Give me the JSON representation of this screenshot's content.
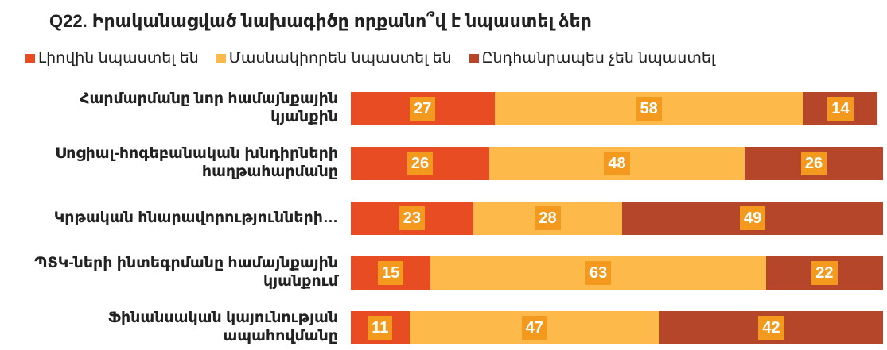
{
  "chart_data": {
    "type": "bar",
    "orientation": "horizontal",
    "stacked": true,
    "title": "Q22. Իրականացված նախագիծը որքանո՞վ է նպաստել ձեր",
    "categories": [
      "Հարմարմանը նոր համայնքային կյանքին",
      "Սոցիալ-հոգեբանական խնդիրների հաղթահարմանը",
      "Կրթական հնարավորությունների…",
      "ՊՏԿ-ների ինտեգրմանը համայնքային կյանքում",
      "Ֆինանսական կայունության ապահովմանը"
    ],
    "series": [
      {
        "name": "Լիովին նպաստել են",
        "color": "#e84c22",
        "values": [
          27,
          26,
          23,
          15,
          11
        ]
      },
      {
        "name": "Մասնակիորեն նպաստել են",
        "color": "#fdb94a",
        "values": [
          58,
          48,
          28,
          63,
          47
        ]
      },
      {
        "name": "Ընդհանրապես չեն նպաստել",
        "color": "#b5462a",
        "values": [
          14,
          26,
          49,
          22,
          42
        ]
      }
    ],
    "label_color": "#f39a1e",
    "xlim": [
      0,
      100
    ]
  }
}
